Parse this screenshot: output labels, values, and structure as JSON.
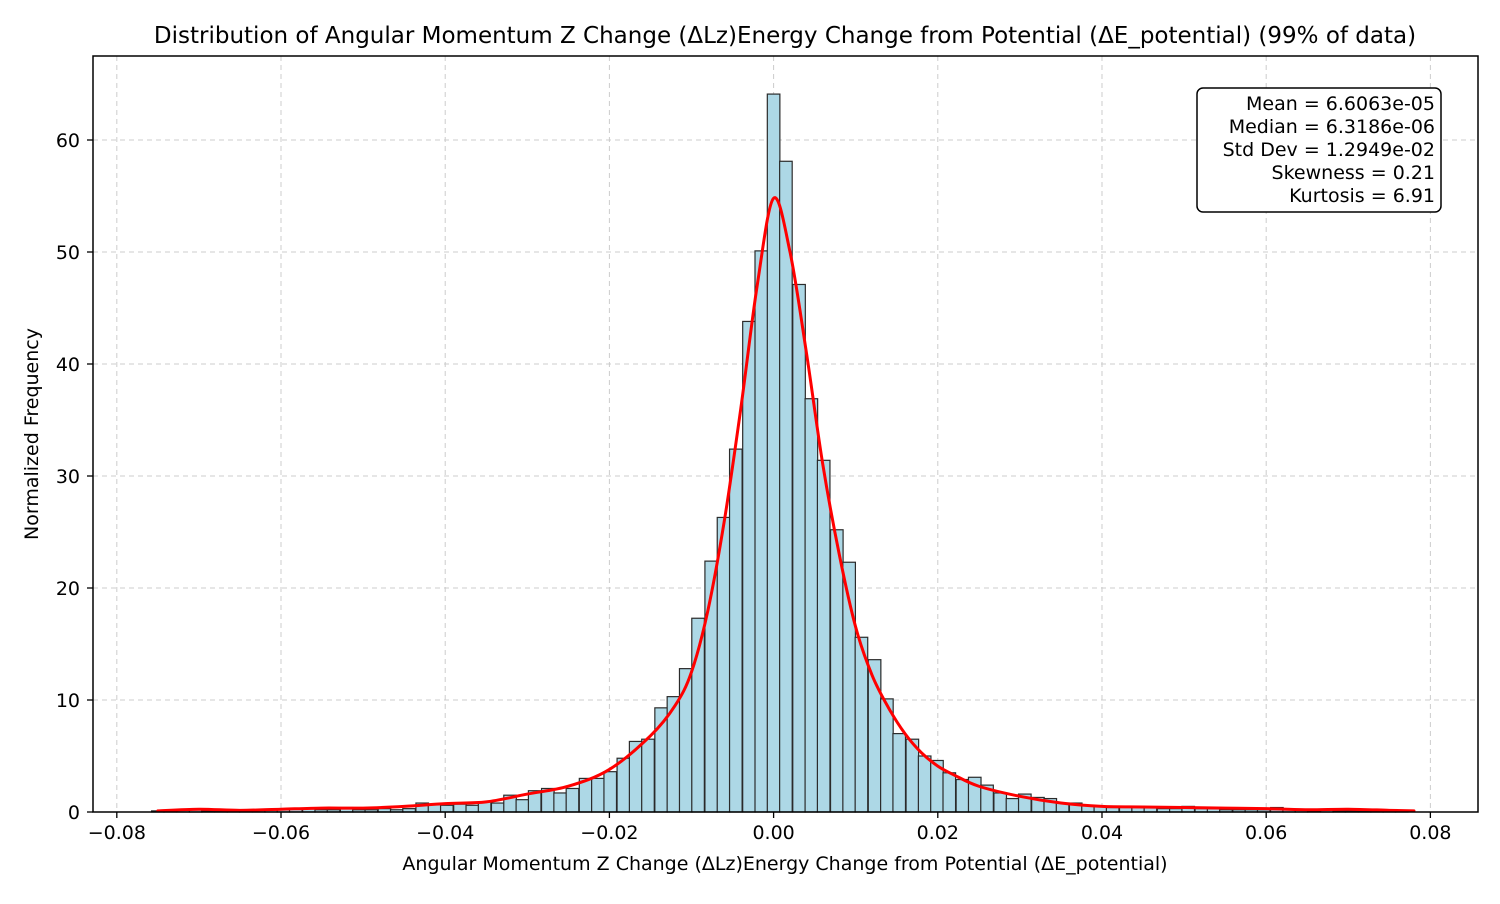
{
  "chart_data": {
    "type": "bar",
    "title": "Distribution of Angular Momentum Z Change (ΔLz)Energy Change from Potential (ΔE_potential) (99% of data)",
    "xlabel": "Angular Momentum Z Change (ΔLz)Energy Change from Potential (ΔE_potential)",
    "ylabel": "Normalized Frequency",
    "xlim": [
      -0.0829,
      0.0858
    ],
    "ylim": [
      0,
      67.5
    ],
    "grid": true,
    "x_ticks": [
      -0.08,
      -0.06,
      -0.04,
      -0.02,
      0.0,
      0.02,
      0.04,
      0.06,
      0.08
    ],
    "x_tick_labels": [
      "−0.08",
      "−0.06",
      "−0.04",
      "−0.02",
      "0.00",
      "0.02",
      "0.04",
      "0.06",
      "0.08"
    ],
    "y_ticks": [
      0,
      10,
      20,
      30,
      40,
      50,
      60
    ],
    "y_tick_labels": [
      "0",
      "10",
      "20",
      "30",
      "40",
      "50",
      "60"
    ],
    "bin_width": 0.00153,
    "bins": [
      {
        "x": -0.075,
        "y": 0.1
      },
      {
        "x": -0.0735,
        "y": 0.1
      },
      {
        "x": -0.0719,
        "y": 0.2
      },
      {
        "x": -0.0704,
        "y": 0.2
      },
      {
        "x": -0.0689,
        "y": 0.1
      },
      {
        "x": -0.0673,
        "y": 0.1
      },
      {
        "x": -0.0658,
        "y": 0.1
      },
      {
        "x": -0.0643,
        "y": 0.1
      },
      {
        "x": -0.0627,
        "y": 0.2
      },
      {
        "x": -0.0612,
        "y": 0.2
      },
      {
        "x": -0.0597,
        "y": 0.2
      },
      {
        "x": -0.0582,
        "y": 0.3
      },
      {
        "x": -0.0566,
        "y": 0.3
      },
      {
        "x": -0.0551,
        "y": 0.2
      },
      {
        "x": -0.0536,
        "y": 0.2
      },
      {
        "x": -0.052,
        "y": 0.4
      },
      {
        "x": -0.0505,
        "y": 0.2
      },
      {
        "x": -0.049,
        "y": 0.2
      },
      {
        "x": -0.0474,
        "y": 0.3
      },
      {
        "x": -0.0459,
        "y": 0.2
      },
      {
        "x": -0.0444,
        "y": 0.3
      },
      {
        "x": -0.0428,
        "y": 0.8
      },
      {
        "x": -0.0413,
        "y": 0.7
      },
      {
        "x": -0.0398,
        "y": 0.6
      },
      {
        "x": -0.0382,
        "y": 0.7
      },
      {
        "x": -0.0367,
        "y": 0.6
      },
      {
        "x": -0.0352,
        "y": 0.9
      },
      {
        "x": -0.0336,
        "y": 0.8
      },
      {
        "x": -0.0321,
        "y": 1.5
      },
      {
        "x": -0.0306,
        "y": 1.1
      },
      {
        "x": -0.0291,
        "y": 1.9
      },
      {
        "x": -0.0275,
        "y": 2.1
      },
      {
        "x": -0.026,
        "y": 1.7
      },
      {
        "x": -0.0245,
        "y": 2.1
      },
      {
        "x": -0.0229,
        "y": 3.0
      },
      {
        "x": -0.0214,
        "y": 3.0
      },
      {
        "x": -0.0199,
        "y": 3.6
      },
      {
        "x": -0.0183,
        "y": 4.8
      },
      {
        "x": -0.0168,
        "y": 6.3
      },
      {
        "x": -0.0153,
        "y": 6.5
      },
      {
        "x": -0.0137,
        "y": 9.3
      },
      {
        "x": -0.0122,
        "y": 10.3
      },
      {
        "x": -0.0107,
        "y": 12.8
      },
      {
        "x": -0.0092,
        "y": 17.3
      },
      {
        "x": -0.0076,
        "y": 22.4
      },
      {
        "x": -0.0061,
        "y": 26.3
      },
      {
        "x": -0.0046,
        "y": 32.4
      },
      {
        "x": -0.003,
        "y": 43.8
      },
      {
        "x": -0.0015,
        "y": 50.1
      },
      {
        "x": 0.0,
        "y": 64.1
      },
      {
        "x": 0.0015,
        "y": 58.1
      },
      {
        "x": 0.0031,
        "y": 47.1
      },
      {
        "x": 0.0046,
        "y": 36.9
      },
      {
        "x": 0.0061,
        "y": 31.4
      },
      {
        "x": 0.0077,
        "y": 25.2
      },
      {
        "x": 0.0092,
        "y": 22.3
      },
      {
        "x": 0.0107,
        "y": 15.6
      },
      {
        "x": 0.0123,
        "y": 13.6
      },
      {
        "x": 0.0138,
        "y": 10.1
      },
      {
        "x": 0.0153,
        "y": 7.0
      },
      {
        "x": 0.0169,
        "y": 6.5
      },
      {
        "x": 0.0184,
        "y": 5.0
      },
      {
        "x": 0.0199,
        "y": 4.6
      },
      {
        "x": 0.0214,
        "y": 3.5
      },
      {
        "x": 0.023,
        "y": 2.9
      },
      {
        "x": 0.0245,
        "y": 3.1
      },
      {
        "x": 0.026,
        "y": 2.4
      },
      {
        "x": 0.0276,
        "y": 1.7
      },
      {
        "x": 0.0291,
        "y": 1.2
      },
      {
        "x": 0.0306,
        "y": 1.6
      },
      {
        "x": 0.0322,
        "y": 1.3
      },
      {
        "x": 0.0337,
        "y": 1.2
      },
      {
        "x": 0.0352,
        "y": 0.8
      },
      {
        "x": 0.0368,
        "y": 0.8
      },
      {
        "x": 0.0383,
        "y": 0.6
      },
      {
        "x": 0.0398,
        "y": 0.5
      },
      {
        "x": 0.0413,
        "y": 0.4
      },
      {
        "x": 0.0429,
        "y": 0.5
      },
      {
        "x": 0.0444,
        "y": 0.5
      },
      {
        "x": 0.0459,
        "y": 0.4
      },
      {
        "x": 0.0475,
        "y": 0.3
      },
      {
        "x": 0.049,
        "y": 0.3
      },
      {
        "x": 0.0505,
        "y": 0.5
      },
      {
        "x": 0.0521,
        "y": 0.3
      },
      {
        "x": 0.0536,
        "y": 0.3
      },
      {
        "x": 0.0551,
        "y": 0.2
      },
      {
        "x": 0.0567,
        "y": 0.2
      },
      {
        "x": 0.0582,
        "y": 0.2
      },
      {
        "x": 0.0597,
        "y": 0.2
      },
      {
        "x": 0.0613,
        "y": 0.4
      },
      {
        "x": 0.0628,
        "y": 0.2
      },
      {
        "x": 0.0643,
        "y": 0.2
      },
      {
        "x": 0.0658,
        "y": 0.1
      },
      {
        "x": 0.0674,
        "y": 0.2
      },
      {
        "x": 0.0689,
        "y": 0.1
      },
      {
        "x": 0.0704,
        "y": 0.1
      },
      {
        "x": 0.072,
        "y": 0.1
      },
      {
        "x": 0.0735,
        "y": 0.1
      },
      {
        "x": 0.075,
        "y": 0.1
      },
      {
        "x": 0.0765,
        "y": 0.1
      }
    ],
    "kde": [
      [
        -0.075,
        0.1
      ],
      [
        -0.07,
        0.25
      ],
      [
        -0.065,
        0.15
      ],
      [
        -0.06,
        0.25
      ],
      [
        -0.055,
        0.35
      ],
      [
        -0.05,
        0.35
      ],
      [
        -0.045,
        0.5
      ],
      [
        -0.04,
        0.75
      ],
      [
        -0.035,
        0.9
      ],
      [
        -0.03,
        1.6
      ],
      [
        -0.025,
        2.3
      ],
      [
        -0.02,
        3.8
      ],
      [
        -0.015,
        6.8
      ],
      [
        -0.012,
        9.5
      ],
      [
        -0.01,
        12.5
      ],
      [
        -0.008,
        18.0
      ],
      [
        -0.006,
        26.0
      ],
      [
        -0.004,
        36.0
      ],
      [
        -0.002,
        47.0
      ],
      [
        0.0,
        54.8
      ],
      [
        0.002,
        50.0
      ],
      [
        0.004,
        41.0
      ],
      [
        0.006,
        31.0
      ],
      [
        0.008,
        23.0
      ],
      [
        0.01,
        16.5
      ],
      [
        0.012,
        12.2
      ],
      [
        0.014,
        9.3
      ],
      [
        0.016,
        7.0
      ],
      [
        0.018,
        5.3
      ],
      [
        0.02,
        4.1
      ],
      [
        0.022,
        3.3
      ],
      [
        0.025,
        2.3
      ],
      [
        0.03,
        1.4
      ],
      [
        0.035,
        0.8
      ],
      [
        0.04,
        0.5
      ],
      [
        0.045,
        0.45
      ],
      [
        0.05,
        0.4
      ],
      [
        0.055,
        0.35
      ],
      [
        0.06,
        0.3
      ],
      [
        0.065,
        0.2
      ],
      [
        0.07,
        0.25
      ],
      [
        0.075,
        0.15
      ],
      [
        0.078,
        0.1
      ]
    ],
    "stats_box": [
      "Mean = 6.6063e-05",
      "Median = 6.3186e-06",
      "Std Dev = 1.2949e-02",
      "Skewness = 0.21",
      "Kurtosis = 6.91"
    ]
  },
  "colors": {
    "bar_fill": "#add8e6",
    "bar_edge": "#2b2b2b",
    "kde_line": "#ff0000",
    "grid": "#cccccc",
    "axes": "#000000"
  }
}
